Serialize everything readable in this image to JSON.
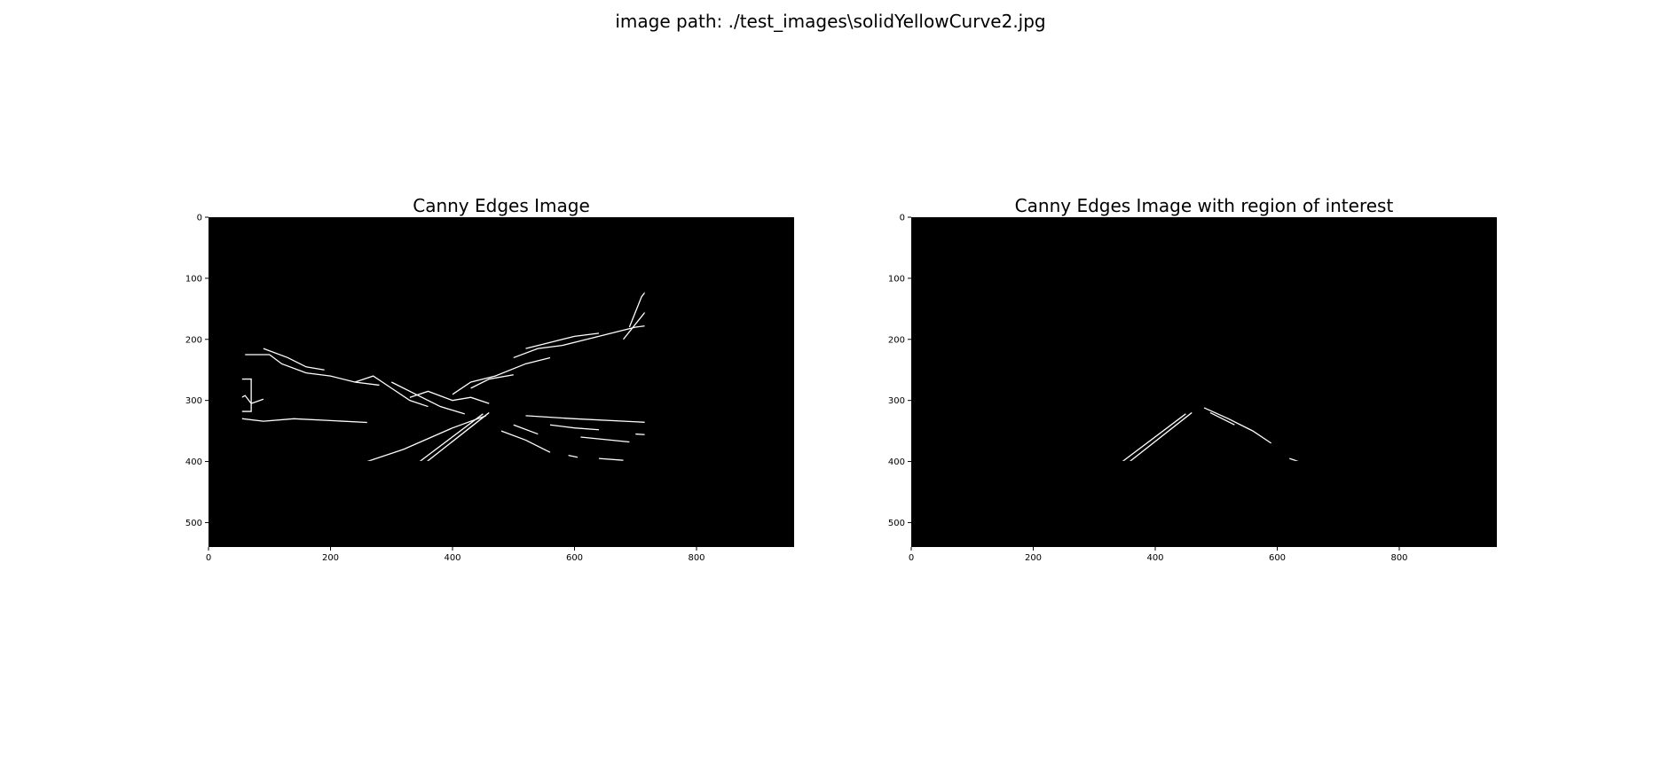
{
  "figure": {
    "suptitle": "image path: ./test_images\\solidYellowCurve2.jpg"
  },
  "chart_data": [
    {
      "type": "image",
      "title": "Canny Edges Image",
      "xlim": [
        0,
        960
      ],
      "ylim": [
        540,
        0
      ],
      "xticks": [
        0,
        200,
        400,
        600,
        800
      ],
      "yticks": [
        0,
        100,
        200,
        300,
        400,
        500
      ],
      "colors": {
        "background": "#000000",
        "edges": "#ffffff"
      }
    },
    {
      "type": "image",
      "title": "Canny Edges Image with region of interest",
      "xlim": [
        0,
        960
      ],
      "ylim": [
        540,
        0
      ],
      "xticks": [
        0,
        200,
        400,
        600,
        800
      ],
      "yticks": [
        0,
        100,
        200,
        300,
        400,
        500
      ],
      "colors": {
        "background": "#000000",
        "edges": "#ffffff"
      }
    }
  ]
}
